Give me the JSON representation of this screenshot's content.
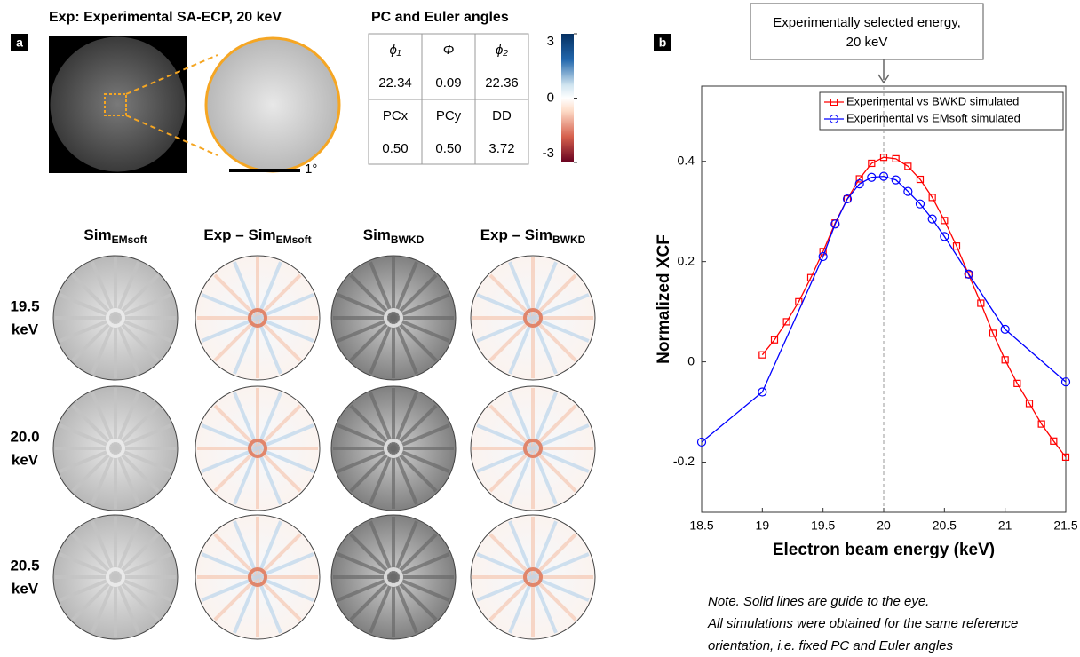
{
  "panel_a": {
    "label": "a",
    "title": "Exp: Experimental SA-ECP, 20 keV",
    "scale_bar": "1°",
    "table_title": "PC and  Euler angles",
    "table": {
      "rows": [
        [
          "ϕ₁",
          "Φ",
          "ϕ₂"
        ],
        [
          "22.34",
          "0.09",
          "22.36"
        ],
        [
          "PCx",
          "PCy",
          "DD"
        ],
        [
          "0.50",
          "0.50",
          "3.72"
        ]
      ]
    },
    "colorbar": {
      "lim": [
        -3,
        3
      ],
      "ticks": [
        3,
        0,
        -3
      ]
    },
    "columns": [
      {
        "main": "Sim",
        "sub": "EMsoft"
      },
      {
        "main": "Exp – Sim",
        "sub": "EMsoft"
      },
      {
        "main": "Sim",
        "sub": "BWKD"
      },
      {
        "main": "Exp – Sim",
        "sub": "BWKD"
      }
    ],
    "rows": [
      [
        "19.5",
        "keV"
      ],
      [
        "20.0",
        "keV"
      ],
      [
        "20.5",
        "keV"
      ]
    ]
  },
  "chart_data": {
    "type": "line",
    "label": "b",
    "annotation": [
      "Experimentally selected energy,",
      "20 keV"
    ],
    "vline": 20,
    "xlabel": "Electron beam energy (keV)",
    "ylabel": "Normalized XCF",
    "xlim": [
      18.5,
      21.5
    ],
    "xticks": [
      18.5,
      19,
      19.5,
      20,
      20.5,
      21,
      21.5
    ],
    "ylim": [
      -0.3,
      0.55
    ],
    "yticks": [
      -0.2,
      0,
      0.2,
      0.4
    ],
    "legend": "upper right",
    "series": [
      {
        "name": "Experimental vs  BWKD simulated",
        "color": "#ff0000",
        "marker": "square",
        "x": [
          19,
          19.1,
          19.2,
          19.3,
          19.4,
          19.5,
          19.6,
          19.7,
          19.8,
          19.9,
          20,
          20.1,
          20.2,
          20.3,
          20.4,
          20.5,
          20.6,
          20.7,
          20.8,
          20.9,
          21,
          21.1,
          21.2,
          21.3,
          21.4,
          21.5
        ],
        "values": [
          0.014,
          0.044,
          0.08,
          0.12,
          0.168,
          0.22,
          0.277,
          0.325,
          0.365,
          0.396,
          0.408,
          0.405,
          0.39,
          0.364,
          0.328,
          0.282,
          0.231,
          0.174,
          0.117,
          0.057,
          0.004,
          -0.043,
          -0.083,
          -0.124,
          -0.158,
          -0.19
        ]
      },
      {
        "name": "Experimental vs  EMsoft simulated",
        "color": "#0000ff",
        "marker": "circle",
        "x": [
          18.5,
          19,
          19.5,
          19.6,
          19.7,
          19.8,
          19.9,
          20,
          20.1,
          20.2,
          20.3,
          20.4,
          20.5,
          20.7,
          21,
          21.5
        ],
        "values": [
          -0.16,
          -0.06,
          0.21,
          0.275,
          0.325,
          0.355,
          0.368,
          0.37,
          0.363,
          0.34,
          0.315,
          0.285,
          0.25,
          0.175,
          0.065,
          -0.04
        ]
      }
    ],
    "note": [
      "Note. Solid lines are guide to the eye.",
      "All simulations were obtained for the same reference",
      "orientation, i.e. fixed PC and Euler angles"
    ]
  }
}
